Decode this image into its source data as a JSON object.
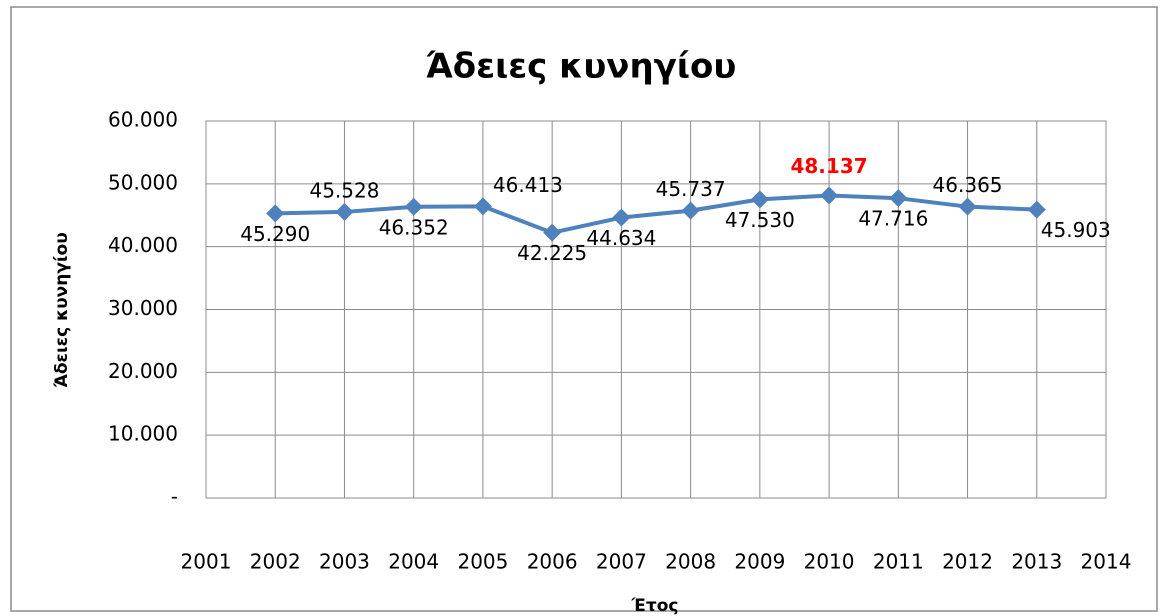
{
  "chart_data": {
    "type": "line",
    "title": "Άδειες κυνηγίου",
    "x_label": "Έτος",
    "y_label": "Άδειες κυνηγίου",
    "x": [
      2002,
      2003,
      2004,
      2005,
      2006,
      2007,
      2008,
      2009,
      2010,
      2011,
      2012,
      2013
    ],
    "series": [
      {
        "name": "Άδειες κυνηγίου",
        "color": "#4f81bd",
        "values": [
          45290,
          45528,
          46352,
          46413,
          42225,
          44634,
          45737,
          47530,
          48137,
          47716,
          46365,
          45903
        ],
        "value_labels": [
          "45.290",
          "45.528",
          "46.352",
          "46.413",
          "42.225",
          "44.634",
          "45.737",
          "47.530",
          "48.137",
          "47.716",
          "46.365",
          "45.903"
        ],
        "value_label_colors": [
          "#000000",
          "#000000",
          "#000000",
          "#000000",
          "#000000",
          "#000000",
          "#000000",
          "#000000",
          "#ff0000",
          "#000000",
          "#000000",
          "#000000"
        ]
      }
    ],
    "xlim": [
      2001,
      2014
    ],
    "xticks": [
      2001,
      2002,
      2003,
      2004,
      2005,
      2006,
      2007,
      2008,
      2009,
      2010,
      2011,
      2012,
      2013,
      2014
    ],
    "ylim": [
      0,
      60000
    ],
    "yticks": [
      {
        "value": 0,
        "label": "-"
      },
      {
        "value": 10000,
        "label": "10.000"
      },
      {
        "value": 20000,
        "label": "20.000"
      },
      {
        "value": 30000,
        "label": "30.000"
      },
      {
        "value": 40000,
        "label": "40.000"
      },
      {
        "value": 50000,
        "label": "50.000"
      },
      {
        "value": 60000,
        "label": "60.000"
      }
    ],
    "grid": true
  }
}
